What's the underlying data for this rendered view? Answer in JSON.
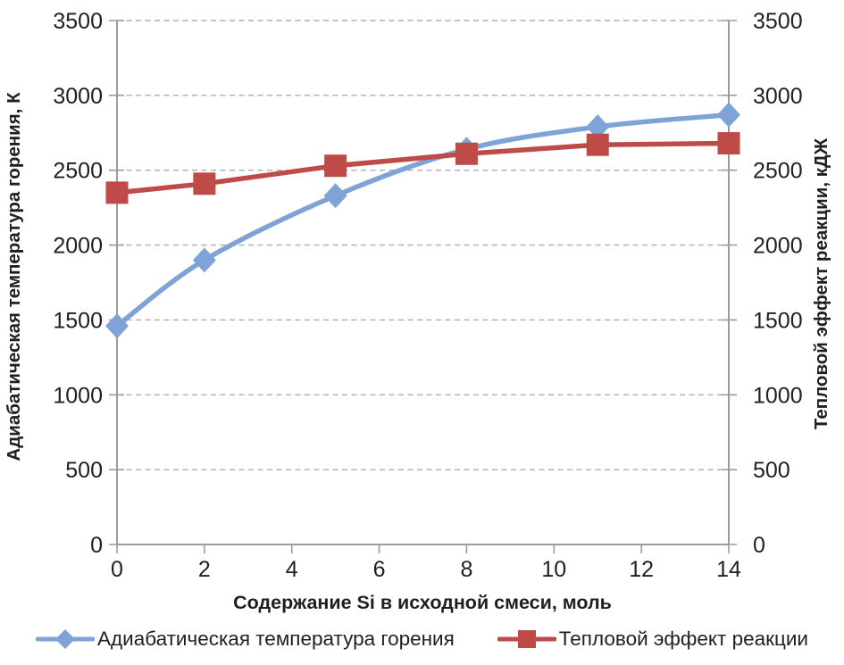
{
  "colors": {
    "series_temperature": "#7FA3D7",
    "series_heat": "#BE4B48",
    "gridline": "#ADADAD",
    "axis_line": "#9C9C9C",
    "tick_text": "#1f1f1f"
  },
  "chart_data": {
    "type": "line",
    "x": [
      0,
      2,
      5,
      8,
      11,
      14
    ],
    "series": [
      {
        "name": "Адиабатическая температура горения",
        "values": [
          1460,
          1900,
          2330,
          2640,
          2790,
          2870
        ],
        "color": "#7FA3D7",
        "marker": "diamond",
        "smooth": true,
        "axis": "left"
      },
      {
        "name": "Тепловой эффект реакции",
        "values": [
          2350,
          2410,
          2530,
          2610,
          2670,
          2680
        ],
        "color": "#BE4B48",
        "marker": "square",
        "smooth": false,
        "axis": "right"
      }
    ],
    "xlabel": "Содержание Si в исходной смеси, моль",
    "ylabel_left": "Адиабатическая температура горения, К",
    "ylabel_right": "Тепловой эффект реакции, кДЖ",
    "xlim": [
      0,
      14
    ],
    "ylim": [
      0,
      3500
    ],
    "xticks": [
      0,
      2,
      4,
      6,
      8,
      10,
      12,
      14
    ],
    "yticks": [
      0,
      500,
      1000,
      1500,
      2000,
      2500,
      3000,
      3500
    ],
    "grid": "horizontal-dashed",
    "legend_position": "bottom"
  }
}
